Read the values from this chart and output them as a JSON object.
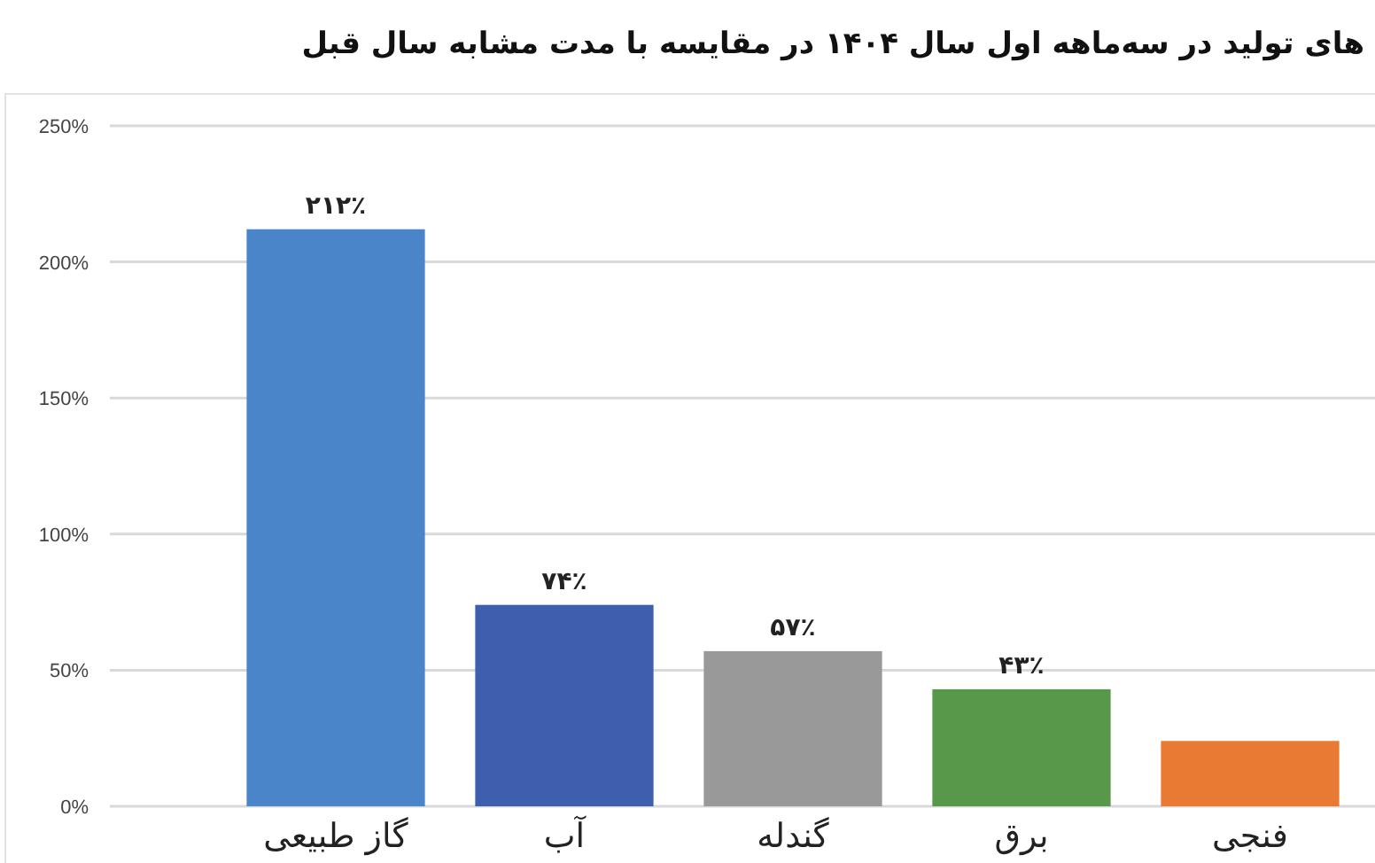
{
  "chart_data": {
    "type": "bar",
    "title": "های تولید در سه‌ماهه اول سال ۱۴۰۴ در مقایسه با مدت مشابه سال قبل",
    "categories": [
      "گاز طبیعی",
      "آب",
      "گندله",
      "برق",
      "فنجی"
    ],
    "values": [
      212,
      74,
      57,
      43,
      24
    ],
    "colors": [
      "#4a85c9",
      "#3d5fae",
      "#999999",
      "#58984a",
      "#e97a33"
    ],
    "value_labels": [
      "۲۱۲٪",
      "۷۴٪",
      "۵۷٪",
      "۴۳٪",
      null
    ],
    "ylim": [
      0,
      250
    ],
    "yticks": [
      {
        "value": 0,
        "label": "0%"
      },
      {
        "value": 50,
        "label": "50%"
      },
      {
        "value": 100,
        "label": "100%"
      },
      {
        "value": 150,
        "label": "150%"
      },
      {
        "value": 200,
        "label": "200%"
      },
      {
        "value": 250,
        "label": "250%"
      }
    ],
    "grid": "y"
  }
}
